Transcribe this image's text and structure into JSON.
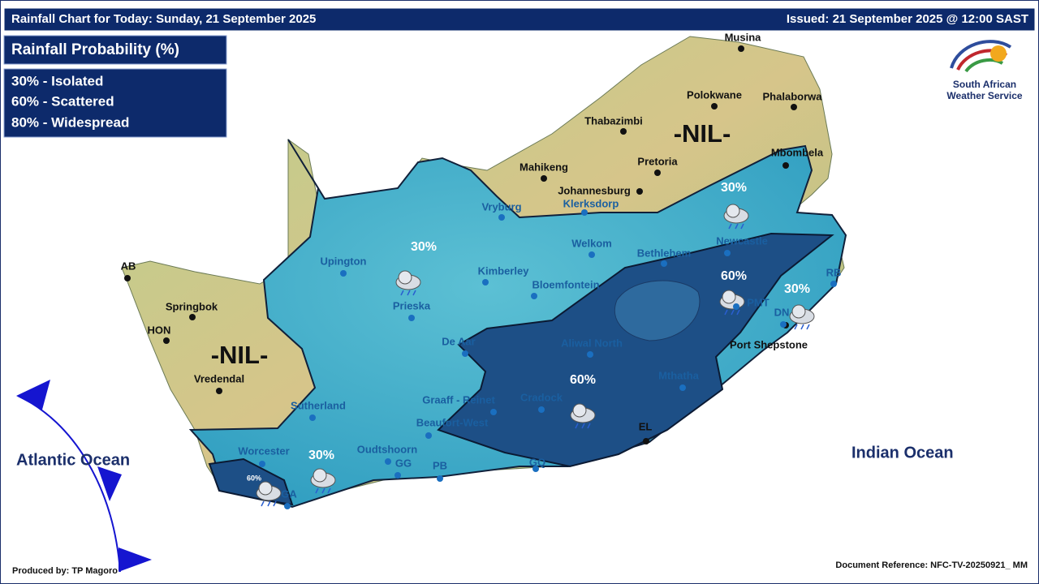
{
  "header": {
    "title": "Rainfall Chart for Today: Sunday, 21 September 2025",
    "issued": "Issued: 21 September 2025 @ 12:00 SAST"
  },
  "legend": {
    "title": "Rainfall Probability (%)",
    "items": [
      "30% - Isolated",
      "60% - Scattered",
      "80% - Widespread"
    ]
  },
  "logo": {
    "line1": "South African",
    "line2": "Weather Service"
  },
  "places": [
    "Musina",
    "Polokwane",
    "Phalaborwa",
    "Thabazimbi",
    "Pretoria",
    "Mahikeng",
    "Johannesburg",
    "Mbombela",
    "AB",
    "Springbok",
    "HON",
    "Vredendal",
    "Port Shepstone",
    "EL",
    "Vryburg",
    "Klerksdorp",
    "Welkom",
    "Bethlehem",
    "Newcastle",
    "Upington",
    "Kimberley",
    "Bloemfontein",
    "RB",
    "Prieska",
    "PMT",
    "DN",
    "De Aar",
    "Aliwal North",
    "Mthatha",
    "Graaff - Reinet",
    "Cradock",
    "Sutherland",
    "Beaufort-West",
    "Worcester",
    "Oudtshoorn",
    "GG",
    "PB",
    "GQ",
    "GA"
  ],
  "zones": [
    "-NIL-",
    "-NIL-",
    "30%",
    "30%",
    "60%",
    "30%",
    "60%",
    "30%",
    "60%"
  ],
  "oceans": [
    "Atlantic Ocean",
    "Indian Ocean"
  ],
  "footer": {
    "produced_by": "Produced by: TP Magoro",
    "reference": "Document Reference: NFC-TV-20250921_ MM"
  }
}
